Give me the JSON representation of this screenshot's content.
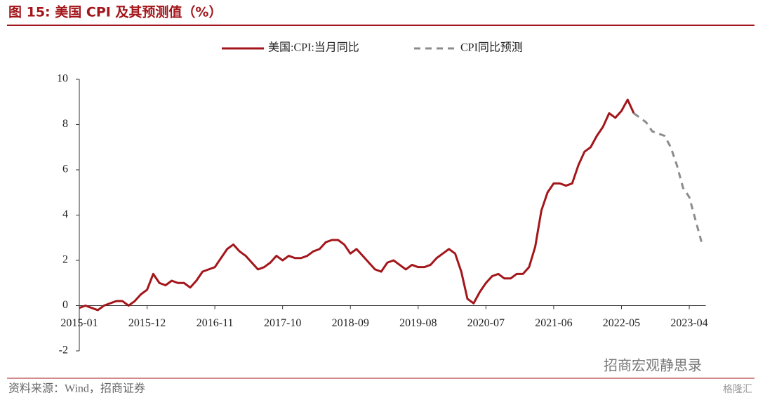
{
  "chart_data": {
    "type": "line",
    "title": "图 15:  美国 CPI 及其预测值（%）",
    "source": "资料来源：Wind，招商证券",
    "watermark": "招商宏观静思录",
    "logo": "格隆汇",
    "categories": [
      "2015-01",
      null,
      null,
      null,
      null,
      null,
      null,
      null,
      null,
      null,
      null,
      "2015-12",
      null,
      null,
      null,
      null,
      null,
      null,
      null,
      null,
      null,
      null,
      "2016-11",
      null,
      null,
      null,
      null,
      null,
      null,
      null,
      null,
      null,
      null,
      "2017-10",
      null,
      null,
      null,
      null,
      null,
      null,
      null,
      null,
      null,
      null,
      "2018-09",
      null,
      null,
      null,
      null,
      null,
      null,
      null,
      null,
      null,
      null,
      "2019-08",
      null,
      null,
      null,
      null,
      null,
      null,
      null,
      null,
      null,
      null,
      "2020-07",
      null,
      null,
      null,
      null,
      null,
      null,
      null,
      null,
      null,
      null,
      "2021-06",
      null,
      null,
      null,
      null,
      null,
      null,
      null,
      null,
      null,
      null,
      "2022-05",
      null,
      null,
      null,
      null,
      null,
      null,
      null,
      null,
      null,
      null,
      "2023-04",
      null,
      null
    ],
    "series": [
      {
        "name": "美国:CPI:当月同比",
        "color": "#a3161b",
        "dash": false,
        "values": [
          -0.1,
          0.0,
          -0.1,
          -0.2,
          0.0,
          0.1,
          0.2,
          0.2,
          0.0,
          0.2,
          0.5,
          0.7,
          1.4,
          1.0,
          0.9,
          1.1,
          1.0,
          1.0,
          0.8,
          1.1,
          1.5,
          1.6,
          1.7,
          2.1,
          2.5,
          2.7,
          2.4,
          2.2,
          1.9,
          1.6,
          1.7,
          1.9,
          2.2,
          2.0,
          2.2,
          2.1,
          2.1,
          2.2,
          2.4,
          2.5,
          2.8,
          2.9,
          2.9,
          2.7,
          2.3,
          2.5,
          2.2,
          1.9,
          1.6,
          1.5,
          1.9,
          2.0,
          1.8,
          1.6,
          1.8,
          1.7,
          1.7,
          1.8,
          2.1,
          2.3,
          2.5,
          2.3,
          1.5,
          0.3,
          0.1,
          0.6,
          1.0,
          1.3,
          1.4,
          1.2,
          1.2,
          1.4,
          1.4,
          1.7,
          2.6,
          4.2,
          5.0,
          5.4,
          5.4,
          5.3,
          5.4,
          6.2,
          6.8,
          7.0,
          7.5,
          7.9,
          8.5,
          8.3,
          8.6,
          9.1,
          8.5,
          null,
          null,
          null,
          null,
          null,
          null,
          null,
          null,
          null,
          null,
          null
        ]
      },
      {
        "name": "CPI同比预测",
        "color": "#8c8c8c",
        "dash": true,
        "values": [
          null,
          null,
          null,
          null,
          null,
          null,
          null,
          null,
          null,
          null,
          null,
          null,
          null,
          null,
          null,
          null,
          null,
          null,
          null,
          null,
          null,
          null,
          null,
          null,
          null,
          null,
          null,
          null,
          null,
          null,
          null,
          null,
          null,
          null,
          null,
          null,
          null,
          null,
          null,
          null,
          null,
          null,
          null,
          null,
          null,
          null,
          null,
          null,
          null,
          null,
          null,
          null,
          null,
          null,
          null,
          null,
          null,
          null,
          null,
          null,
          null,
          null,
          null,
          null,
          null,
          null,
          null,
          null,
          null,
          null,
          null,
          null,
          null,
          null,
          null,
          null,
          null,
          null,
          null,
          null,
          null,
          null,
          null,
          null,
          null,
          null,
          null,
          null,
          null,
          null,
          8.5,
          8.3,
          8.1,
          7.7,
          7.6,
          7.5,
          7.0,
          6.2,
          5.2,
          4.8,
          3.8,
          2.8
        ]
      }
    ],
    "ylim": [
      -2,
      10
    ],
    "yticks": [
      -2,
      0,
      2,
      4,
      6,
      8,
      10
    ]
  }
}
